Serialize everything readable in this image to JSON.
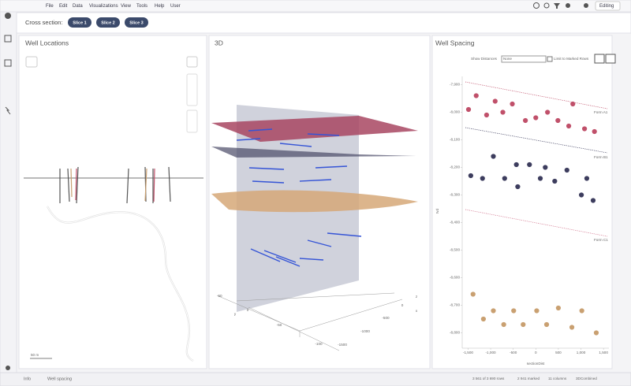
{
  "menu": {
    "items": [
      "File",
      "Edit",
      "Data",
      "Visualizations",
      "View",
      "Tools",
      "Help",
      "User"
    ],
    "mode": "Editing"
  },
  "cross_section": {
    "label": "Cross section:",
    "slices": [
      "Slice 1",
      "Slice 2",
      "Slice 3"
    ]
  },
  "well_locations": {
    "title": "Well Locations",
    "scale": "50 m"
  },
  "view_3d": {
    "title": "3D",
    "axis_labels": [
      "50",
      "0",
      "y",
      "-50",
      "-100",
      "-1500",
      "-1000",
      "-500",
      "0",
      "z",
      "x"
    ]
  },
  "well_spacing": {
    "title": "Well Spacing",
    "show_distances": "Show Distances",
    "select": "None",
    "limit": "Limit to Marked Rows",
    "chart": {
      "type": "scatter",
      "xlabel": "sectionDist",
      "ylabel": "tvd",
      "xlim": [
        -1630,
        1620
      ],
      "ylim": [
        -8850,
        -7870
      ],
      "xticks": [
        {
          "value": -1500,
          "label": "-1,500"
        },
        {
          "value": -1000,
          "label": "-1,000"
        },
        -500,
        0,
        500,
        {
          "value": 1000,
          "label": "1,000"
        },
        {
          "value": 1500,
          "label": "1,500"
        }
      ],
      "yticks": [
        {
          "value": -7900,
          "label": "-7,900"
        },
        {
          "value": -8000,
          "label": "-8,000"
        },
        {
          "value": -8100,
          "label": "-8,100"
        },
        {
          "value": -8200,
          "label": "-8,200"
        },
        {
          "value": -8300,
          "label": "-8,300"
        },
        {
          "value": -8400,
          "label": "-8,400"
        },
        {
          "value": -8500,
          "label": "-8,500"
        },
        {
          "value": -8600,
          "label": "-8,600"
        },
        {
          "value": -8700,
          "label": "-8,700"
        },
        {
          "value": -8800,
          "label": "-8,800"
        }
      ],
      "series": [
        {
          "color": "#c0506a",
          "x": [
            -1490,
            -1320,
            -1090,
            -900,
            -730,
            -520,
            -230,
            0,
            260,
            490,
            730,
            820,
            1080,
            1300
          ],
          "values": [
            -7990,
            -7940,
            -8010,
            -7960,
            -8000,
            -7970,
            -8030,
            -8020,
            -8000,
            -8030,
            -8050,
            -7970,
            -8060,
            -8070
          ]
        },
        {
          "color": "#3d3d5e",
          "x": [
            -1440,
            -1180,
            -940,
            -690,
            -430,
            -400,
            -140,
            100,
            210,
            420,
            690,
            1010,
            1130,
            1270
          ],
          "values": [
            -8230,
            -8240,
            -8160,
            -8240,
            -8190,
            -8270,
            -8190,
            -8240,
            -8200,
            -8250,
            -8210,
            -8300,
            -8240,
            -8320
          ]
        },
        {
          "color": "#c9a071",
          "x": [
            -1390,
            -1160,
            -940,
            -710,
            -490,
            -280,
            20,
            240,
            500,
            800,
            1020,
            1340
          ],
          "values": [
            -8660,
            -8750,
            -8720,
            -8770,
            -8720,
            -8770,
            -8720,
            -8770,
            -8710,
            -8780,
            -8720,
            -8800
          ]
        }
      ],
      "annotations": [
        "Form A1",
        "Form B1",
        "Form C1"
      ]
    }
  },
  "status": {
    "tabs": [
      "Info",
      "Well spacing"
    ],
    "rows": "3 561 of 3 690 rows",
    "marked": "2 941 marked",
    "columns": "11 columns",
    "view": "3DCombined"
  }
}
